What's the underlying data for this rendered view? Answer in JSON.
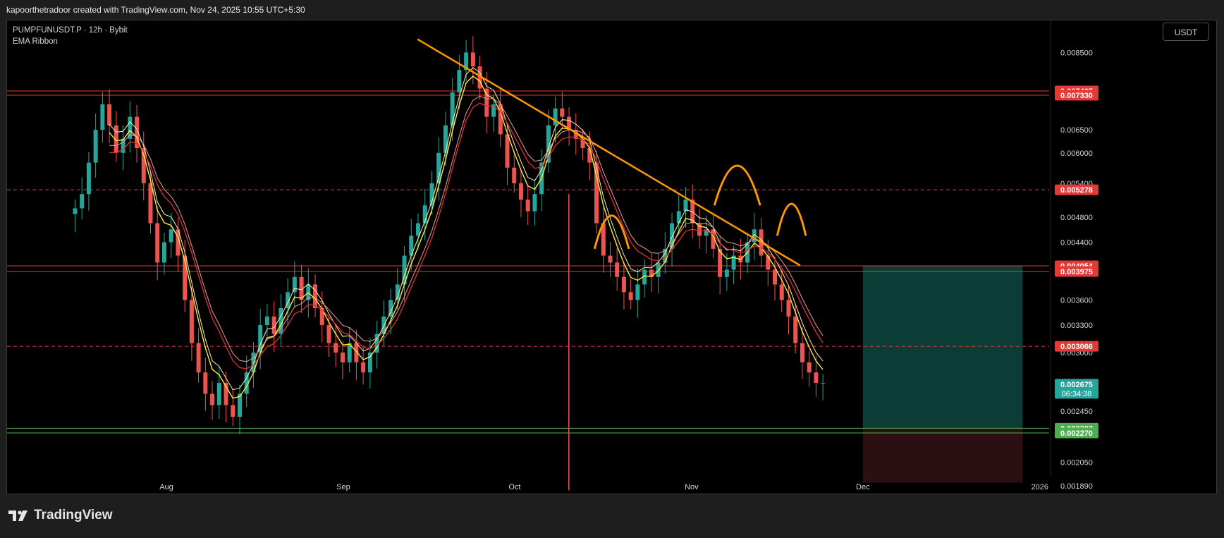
{
  "header": {
    "caption": "kapoorthetradoor created with TradingView.com, Nov 24, 2025 10:55 UTC+5:30"
  },
  "legend": {
    "symbol": "PUMPFUNUSDT.P · 12h · Bybit",
    "indicator": "EMA Ribbon"
  },
  "currency_button": "USDT",
  "footer": {
    "brand": "TradingView"
  },
  "colors": {
    "up": "#26a69a",
    "down": "#ef5350",
    "trendline": "#ff9800",
    "red_line": "#e53935",
    "green_line": "#4caf50",
    "ema_fast": "#ffeb3b",
    "ema_slow": "#d32f2f",
    "target_zone": "#0b3d36",
    "stop_zone": "#2b0f12"
  },
  "chart_data": {
    "type": "candlestick",
    "x_axis": {
      "ticks": [
        "Aug",
        "Sep",
        "Oct",
        "Nov",
        "Dec",
        "2026"
      ]
    },
    "y_axis": {
      "scale": "log",
      "range": [
        0.00183,
        0.0095
      ],
      "ticks": [
        "0.008500",
        "0.006500",
        "0.006000",
        "0.005400",
        "0.004800",
        "0.004400",
        "0.003600",
        "0.003300",
        "0.003000",
        "0.002450",
        "0.002050",
        "0.001890"
      ]
    },
    "price_levels": [
      {
        "value": "0.007437",
        "style": "solid",
        "color": "red"
      },
      {
        "value": "0.007330",
        "style": "solid",
        "color": "red"
      },
      {
        "value": "0.005278",
        "style": "dashed",
        "color": "red"
      },
      {
        "value": "0.004054",
        "style": "solid",
        "color": "red"
      },
      {
        "value": "0.003975",
        "style": "solid",
        "color": "red"
      },
      {
        "value": "0.003066",
        "style": "dashed",
        "color": "red"
      },
      {
        "value": "0.002307",
        "style": "solid",
        "color": "green"
      },
      {
        "value": "0.002270",
        "style": "solid",
        "color": "green"
      }
    ],
    "current_price": {
      "value": "0.002675",
      "countdown": "06:34:38"
    },
    "closes": [
      0.00495,
      0.0052,
      0.0058,
      0.0065,
      0.0071,
      0.0066,
      0.006,
      0.0063,
      0.0068,
      0.0061,
      0.0054,
      0.0047,
      0.0041,
      0.0044,
      0.0046,
      0.0042,
      0.0036,
      0.0031,
      0.0028,
      0.0026,
      0.0025,
      0.0027,
      0.0025,
      0.0024,
      0.0026,
      0.0028,
      0.003,
      0.0033,
      0.0034,
      0.0032,
      0.0035,
      0.0037,
      0.0039,
      0.0036,
      0.0038,
      0.0035,
      0.0033,
      0.0031,
      0.003,
      0.0029,
      0.0031,
      0.0029,
      0.0028,
      0.003,
      0.0032,
      0.0034,
      0.0036,
      0.0038,
      0.0042,
      0.0045,
      0.0047,
      0.005,
      0.0054,
      0.006,
      0.0066,
      0.0074,
      0.008,
      0.0085,
      0.0081,
      0.0075,
      0.0068,
      0.0071,
      0.0064,
      0.0057,
      0.0054,
      0.0051,
      0.0049,
      0.0052,
      0.0058,
      0.0066,
      0.007,
      0.0068,
      0.0065,
      0.0063,
      0.0061,
      0.0058,
      0.0047,
      0.0042,
      0.0041,
      0.0039,
      0.0037,
      0.0036,
      0.0038,
      0.004,
      0.0039,
      0.0041,
      0.0043,
      0.0047,
      0.0049,
      0.0051,
      0.0047,
      0.0045,
      0.0046,
      0.0043,
      0.0039,
      0.004,
      0.0042,
      0.0041,
      0.0044,
      0.0046,
      0.0042,
      0.004,
      0.0038,
      0.0036,
      0.0034,
      0.0031,
      0.0029,
      0.0028,
      0.0027,
      0.0027
    ],
    "series": [
      {
        "name": "EMA Ribbon",
        "role": "fast"
      },
      {
        "name": "EMA Ribbon",
        "role": "slow"
      }
    ],
    "trendline": {
      "from": {
        "x": "Sep 14",
        "y": 0.0089
      },
      "to": {
        "x": "Nov 20",
        "y": 0.00406
      }
    },
    "annotations": [
      {
        "type": "arc",
        "label": ""
      },
      {
        "type": "arc",
        "label": ""
      },
      {
        "type": "arc",
        "label": ""
      }
    ],
    "position_tool": {
      "entry": 0.002307,
      "target": 0.004054,
      "stop": 0.00191
    },
    "grid": false
  }
}
